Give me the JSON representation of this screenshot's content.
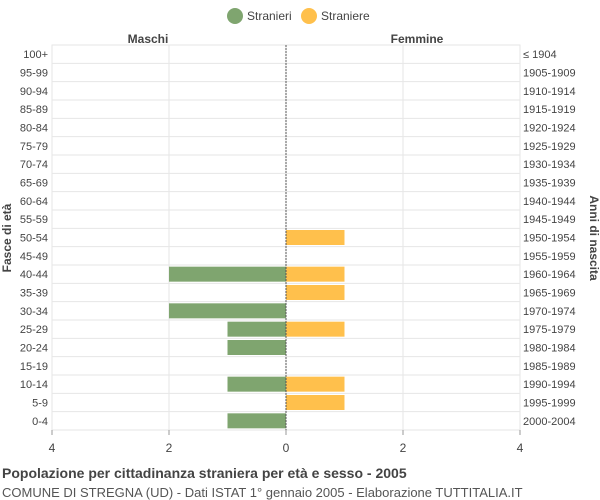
{
  "legend": [
    {
      "name": "Stranieri",
      "color": "#7fa56f"
    },
    {
      "name": "Straniere",
      "color": "#ffc04c"
    }
  ],
  "header": {
    "left": "Maschi",
    "right": "Femmine"
  },
  "axis": {
    "ylabel_left": "Fasce di età",
    "ylabel_right": "Anni di nascita"
  },
  "footer": {
    "title": "Popolazione per cittadinanza straniera per età e sesso - 2005",
    "subtitle": "COMUNE DI STREGNA (UD) - Dati ISTAT 1° gennaio 2005 - Elaborazione TUTTITALIA.IT"
  },
  "chart_data": {
    "type": "bar",
    "orientation": "horizontal-pyramid",
    "categories": [
      "100+",
      "95-99",
      "90-94",
      "85-89",
      "80-84",
      "75-79",
      "70-74",
      "65-69",
      "60-64",
      "55-59",
      "50-54",
      "45-49",
      "40-44",
      "35-39",
      "30-34",
      "25-29",
      "20-24",
      "15-19",
      "10-14",
      "5-9",
      "0-4"
    ],
    "birth_years": [
      "≤ 1904",
      "1905-1909",
      "1910-1914",
      "1915-1919",
      "1920-1924",
      "1925-1929",
      "1930-1934",
      "1935-1939",
      "1940-1944",
      "1945-1949",
      "1950-1954",
      "1955-1959",
      "1960-1964",
      "1965-1969",
      "1970-1974",
      "1975-1979",
      "1980-1984",
      "1985-1989",
      "1990-1994",
      "1995-1999",
      "2000-2004"
    ],
    "series": [
      {
        "name": "Stranieri",
        "color": "#7fa56f",
        "values": [
          0,
          0,
          0,
          0,
          0,
          0,
          0,
          0,
          0,
          0,
          0,
          0,
          2,
          0,
          2,
          1,
          1,
          0,
          1,
          0,
          1
        ]
      },
      {
        "name": "Straniere",
        "color": "#ffc04c",
        "values": [
          0,
          0,
          0,
          0,
          0,
          0,
          0,
          0,
          0,
          0,
          1,
          0,
          1,
          1,
          0,
          1,
          0,
          0,
          1,
          1,
          0
        ]
      }
    ],
    "xlim": [
      -4,
      4
    ],
    "xticks": [
      {
        "value": -4,
        "label": "4"
      },
      {
        "value": -2,
        "label": "2"
      },
      {
        "value": 0,
        "label": "0"
      },
      {
        "value": 2,
        "label": "2"
      },
      {
        "value": 4,
        "label": "4"
      }
    ],
    "grid": true,
    "legend_position": "top-center"
  }
}
